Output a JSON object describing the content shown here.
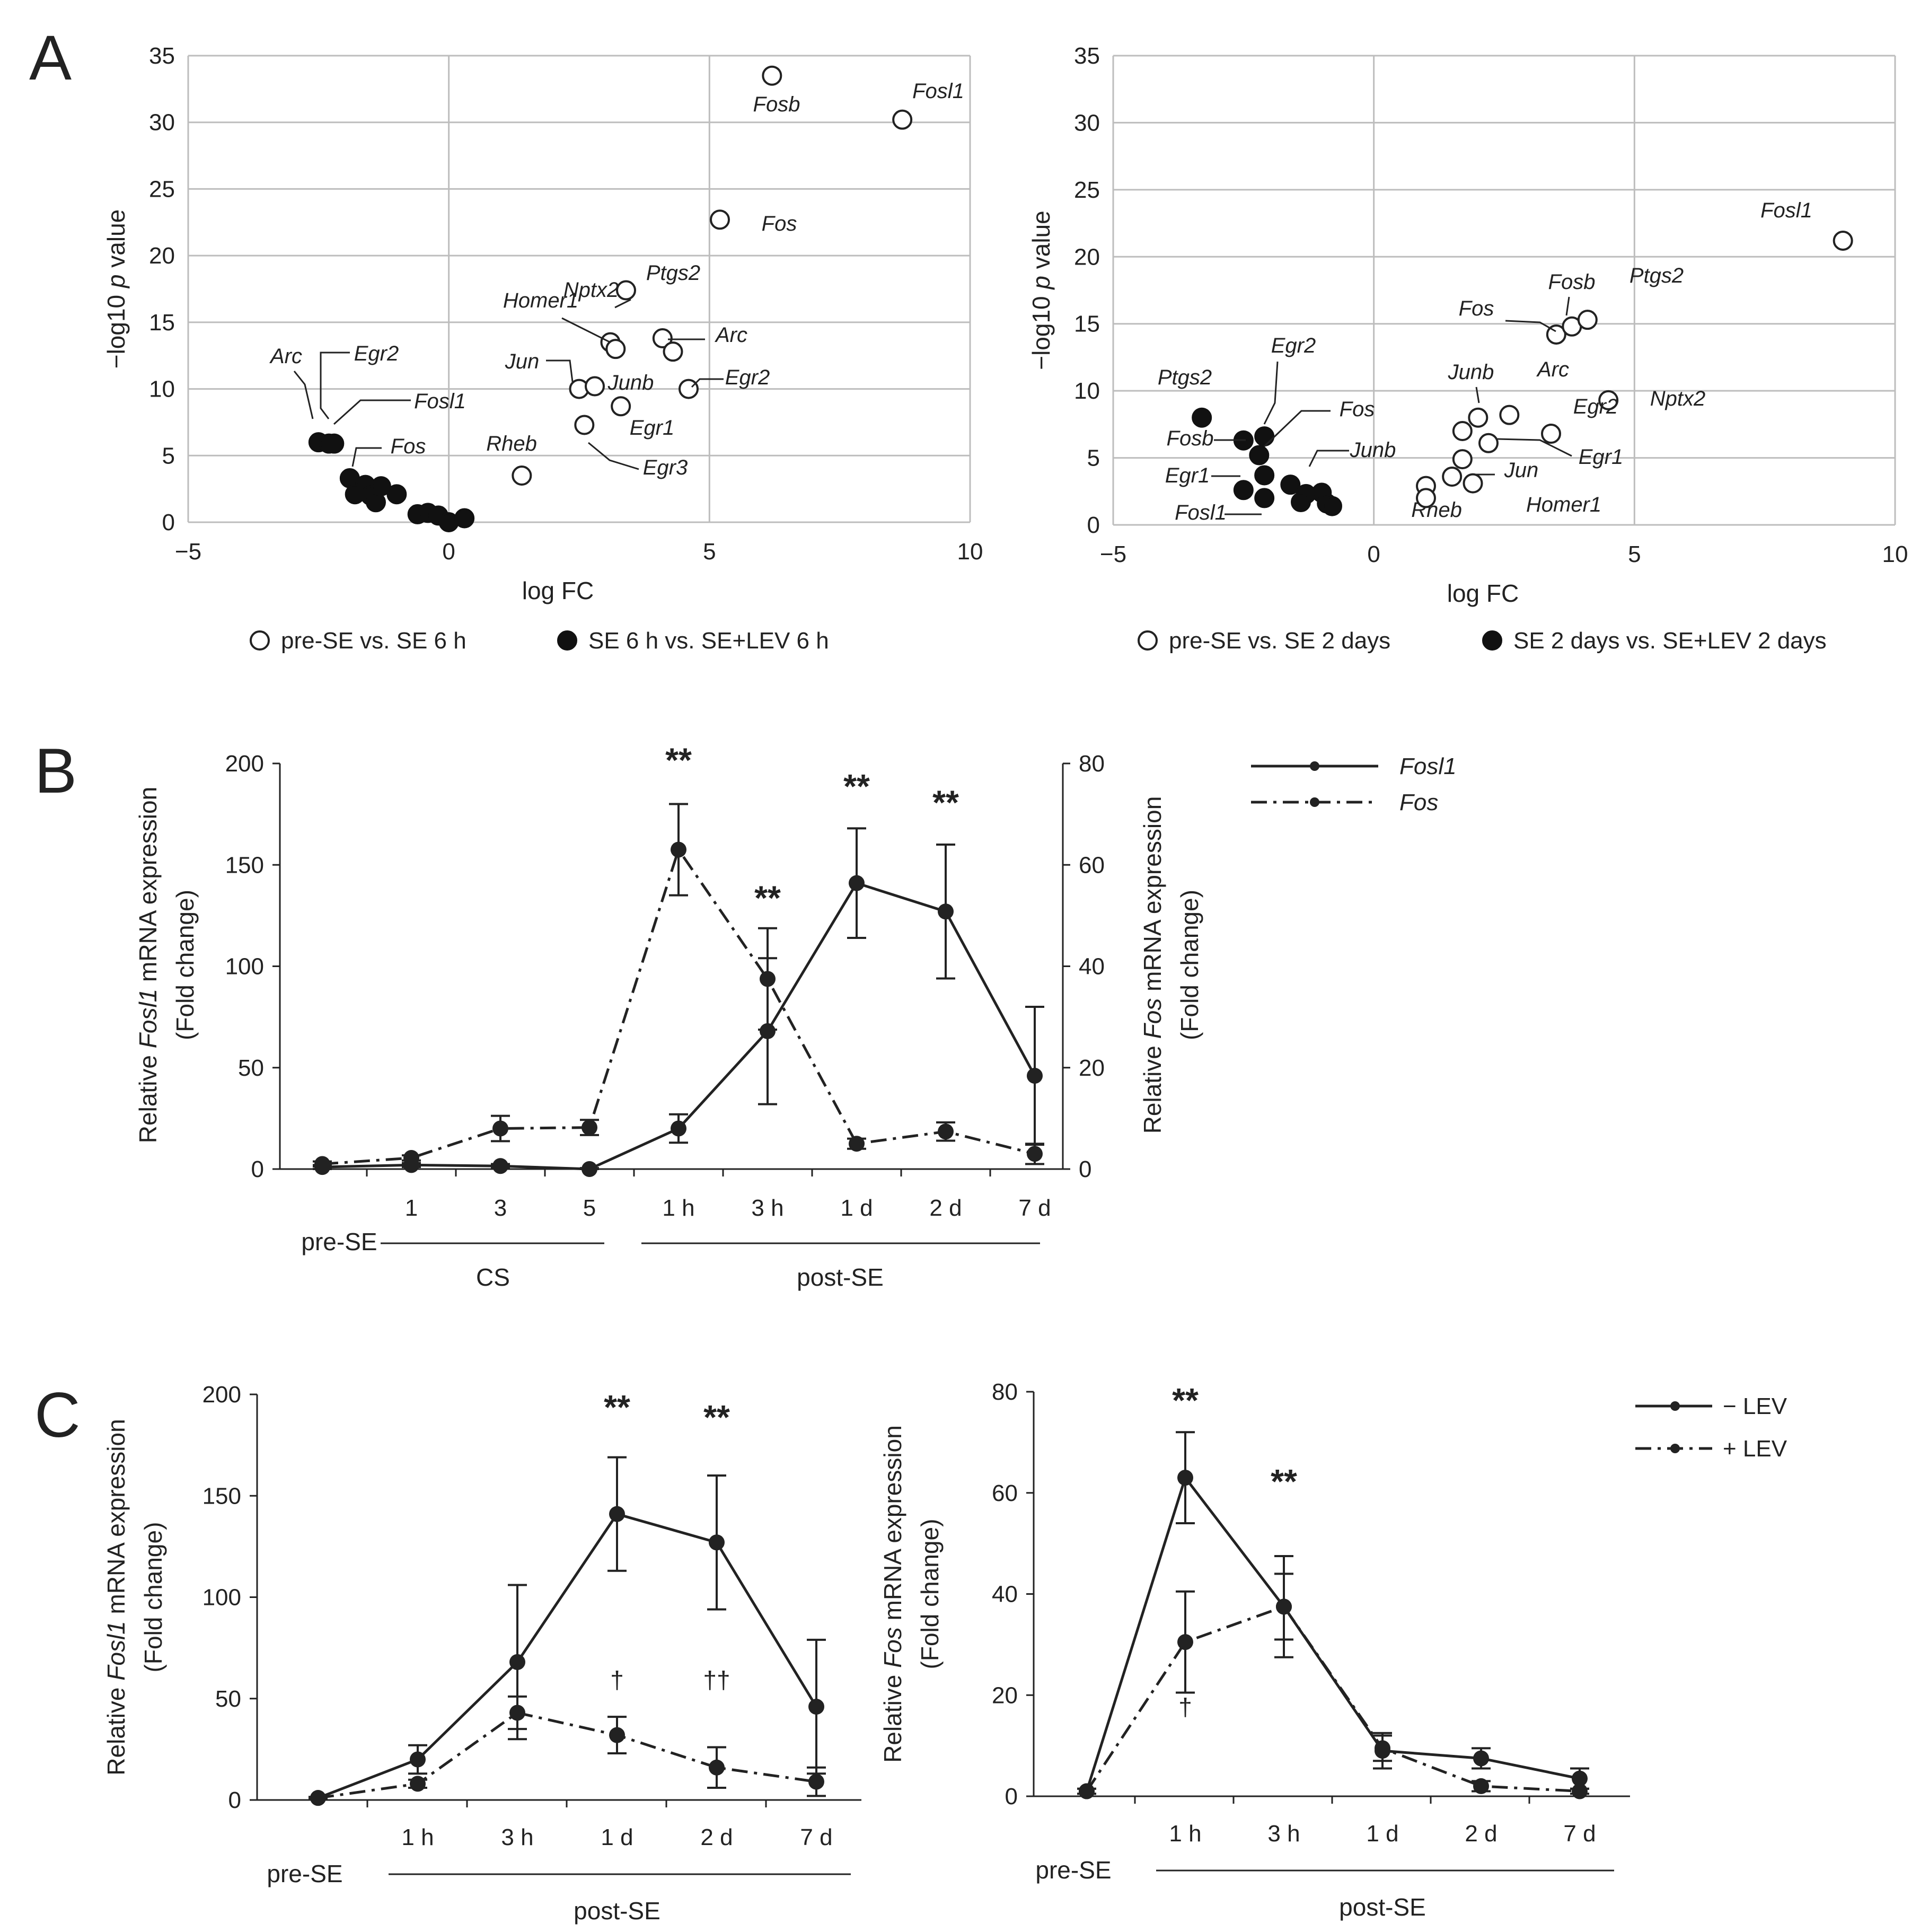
{
  "panels": {
    "A": "A",
    "B": "B",
    "C": "C"
  },
  "chart_data": [
    {
      "type": "scatter",
      "panel": "A",
      "xlabel": "log FC",
      "ylabel_parts": [
        "−log10 ",
        "p",
        " value"
      ],
      "xlim": [
        -5,
        10
      ],
      "ylim": [
        0,
        35
      ],
      "xticks": [
        -5,
        0,
        5,
        10
      ],
      "yticks": [
        0,
        5,
        10,
        15,
        20,
        25,
        30,
        35
      ],
      "grid": true,
      "legend_position": "bottom",
      "series": [
        {
          "name": "pre-SE vs. SE 6 h",
          "marker": "open",
          "color": "#222222",
          "points": [
            {
              "x": 6.2,
              "y": 33.5,
              "label": "Fosb"
            },
            {
              "x": 8.7,
              "y": 30.2,
              "label": "Fosl1"
            },
            {
              "x": 5.2,
              "y": 22.7,
              "label": "Fos"
            },
            {
              "x": 3.4,
              "y": 17.4,
              "label": "Nptx2"
            },
            {
              "x": 4.1,
              "y": 13.8,
              "label": "Ptgs2"
            },
            {
              "x": 3.1,
              "y": 13.5,
              "label": "Homer1"
            },
            {
              "x": 3.2,
              "y": 13.0
            },
            {
              "x": 4.3,
              "y": 12.8,
              "label": "Arc"
            },
            {
              "x": 2.5,
              "y": 10.0,
              "label": "Jun"
            },
            {
              "x": 2.8,
              "y": 10.2,
              "label": "Junb"
            },
            {
              "x": 4.6,
              "y": 10.0,
              "label": "Egr2"
            },
            {
              "x": 3.3,
              "y": 8.7,
              "label": "Egr1"
            },
            {
              "x": 2.6,
              "y": 7.3,
              "label": "Egr3"
            },
            {
              "x": 1.4,
              "y": 3.5,
              "label": "Rheb"
            }
          ]
        },
        {
          "name": "SE 6 h vs. SE+LEV 6 h",
          "marker": "filled",
          "color": "#111111",
          "points": [
            {
              "x": -2.5,
              "y": 6.0,
              "label": "Arc"
            },
            {
              "x": -2.3,
              "y": 5.9,
              "label": "Egr2"
            },
            {
              "x": -2.2,
              "y": 5.9,
              "label": "Fosl1"
            },
            {
              "x": -1.9,
              "y": 3.3,
              "label": "Fos"
            },
            {
              "x": -1.6,
              "y": 2.8
            },
            {
              "x": -1.8,
              "y": 2.1
            },
            {
              "x": -1.5,
              "y": 2.0
            },
            {
              "x": -1.4,
              "y": 1.5
            },
            {
              "x": -1.3,
              "y": 2.7
            },
            {
              "x": -1.0,
              "y": 2.1
            },
            {
              "x": -0.6,
              "y": 0.6
            },
            {
              "x": -0.4,
              "y": 0.7
            },
            {
              "x": -0.2,
              "y": 0.5
            },
            {
              "x": 0.0,
              "y": 0.0
            },
            {
              "x": 0.3,
              "y": 0.3
            }
          ]
        }
      ]
    },
    {
      "type": "scatter",
      "panel": "A",
      "xlabel": "log FC",
      "ylabel_parts": [
        "−log10 ",
        "p",
        " value"
      ],
      "xlim": [
        -5,
        10
      ],
      "ylim": [
        0,
        35
      ],
      "xticks": [
        -5,
        0,
        5,
        10
      ],
      "yticks": [
        0,
        5,
        10,
        15,
        20,
        25,
        30,
        35
      ],
      "grid": true,
      "legend_position": "bottom",
      "series": [
        {
          "name": "pre-SE vs. SE 2 days",
          "marker": "open",
          "color": "#222222",
          "points": [
            {
              "x": 9.0,
              "y": 21.2,
              "label": "Fosl1"
            },
            {
              "x": 3.5,
              "y": 14.2,
              "label": "Fos"
            },
            {
              "x": 3.8,
              "y": 14.8,
              "label": "Fosb"
            },
            {
              "x": 4.1,
              "y": 15.3,
              "label": "Ptgs2"
            },
            {
              "x": 4.5,
              "y": 9.3,
              "label": "Nptx2"
            },
            {
              "x": 2.0,
              "y": 8.0,
              "label": "Junb"
            },
            {
              "x": 2.6,
              "y": 8.2,
              "label": "Arc"
            },
            {
              "x": 3.4,
              "y": 6.8,
              "label": "Egr2"
            },
            {
              "x": 1.7,
              "y": 7.0
            },
            {
              "x": 2.2,
              "y": 6.1,
              "label": "Egr1"
            },
            {
              "x": 1.7,
              "y": 4.9
            },
            {
              "x": 1.5,
              "y": 3.6
            },
            {
              "x": 1.9,
              "y": 3.1,
              "label": "Jun"
            },
            {
              "x": 1.0,
              "y": 2.9,
              "label": "Rheb"
            },
            {
              "x": 1.0,
              "y": 2.0,
              "label": "Homer1"
            }
          ]
        },
        {
          "name": "SE 2 days vs. SE+LEV 2 days",
          "marker": "filled",
          "color": "#111111",
          "points": [
            {
              "x": -3.3,
              "y": 8.0,
              "label": "Ptgs2"
            },
            {
              "x": -2.5,
              "y": 6.3,
              "label": "Egr2"
            },
            {
              "x": -2.1,
              "y": 6.6,
              "label": "Fos"
            },
            {
              "x": -2.2,
              "y": 5.2,
              "label": "Fosb"
            },
            {
              "x": -2.1,
              "y": 3.7,
              "label": "Egr1"
            },
            {
              "x": -2.5,
              "y": 2.6
            },
            {
              "x": -2.1,
              "y": 2.0,
              "label": "Fosl1"
            },
            {
              "x": -1.6,
              "y": 3.0,
              "label": "Junb"
            },
            {
              "x": -1.3,
              "y": 2.3
            },
            {
              "x": -1.0,
              "y": 2.4
            },
            {
              "x": -1.4,
              "y": 1.7
            },
            {
              "x": -0.9,
              "y": 1.6
            },
            {
              "x": -0.8,
              "y": 1.4
            }
          ]
        }
      ]
    },
    {
      "type": "line",
      "panel": "B",
      "categories": [
        "",
        "1",
        "3",
        "5",
        "1 h",
        "3 h",
        "1 d",
        "2 d",
        "7 d"
      ],
      "yleft": {
        "ylim": [
          0,
          200
        ],
        "ticks": [
          0,
          50,
          100,
          150,
          200
        ],
        "label_parts": [
          "Relative ",
          "Fosl1",
          " mRNA expression"
        ],
        "label2": "(Fold change)"
      },
      "yright": {
        "ylim": [
          0,
          80
        ],
        "ticks": [
          0,
          20,
          40,
          60,
          80
        ],
        "label_parts": [
          "Relative ",
          "Fos",
          " mRNA expression"
        ],
        "label2": "(Fold change)"
      },
      "group_labels": {
        "pre": "pre-SE",
        "cs": "CS",
        "post": "post-SE"
      },
      "legend_position": "top-right",
      "series": [
        {
          "name": "Fosl1",
          "axis": "left",
          "style": "solid",
          "values": [
            1,
            2,
            1.5,
            0,
            20,
            68,
            141,
            127,
            46
          ],
          "errors": [
            1,
            1,
            1,
            0.5,
            7,
            36,
            27,
            33,
            34
          ]
        },
        {
          "name": "Fos",
          "axis": "right",
          "style": "dashdot",
          "values": [
            1,
            2.2,
            8,
            8.2,
            63,
            37.5,
            5,
            7.4,
            3
          ],
          "errors": [
            0.5,
            0.5,
            2.5,
            1.5,
            9,
            10,
            1,
            1.8,
            2
          ]
        }
      ],
      "annotations": [
        {
          "text": "**",
          "index": 4,
          "y": 196
        },
        {
          "text": "**",
          "index": 5,
          "y": 128
        },
        {
          "text": "**",
          "index": 6,
          "y": 183
        },
        {
          "text": "**",
          "index": 7,
          "y": 175
        }
      ]
    },
    {
      "type": "line",
      "panel": "C",
      "categories": [
        "",
        "1 h",
        "3 h",
        "1 d",
        "2 d",
        "7 d"
      ],
      "ylim": [
        0,
        200
      ],
      "yticks": [
        0,
        50,
        100,
        150,
        200
      ],
      "ylabel_parts": [
        "Relative ",
        "Fosl1",
        " mRNA expression"
      ],
      "ylabel2": "(Fold change)",
      "group_labels": {
        "pre": "pre-SE",
        "post": "post-SE"
      },
      "series": [
        {
          "name": "− LEV",
          "style": "solid",
          "values": [
            1,
            20,
            68,
            141,
            127,
            46
          ],
          "errors": [
            0.5,
            7,
            38,
            28,
            33,
            33
          ]
        },
        {
          "name": "+ LEV",
          "style": "dashdot",
          "values": [
            1,
            8,
            43,
            32,
            16,
            9
          ],
          "errors": [
            0.5,
            2,
            8,
            9,
            10,
            7
          ]
        }
      ],
      "annotations": [
        {
          "text": "**",
          "index": 3,
          "y": 188
        },
        {
          "text": "**",
          "index": 4,
          "y": 183
        },
        {
          "text": "†",
          "index": 3,
          "y": 55
        },
        {
          "text": "††",
          "index": 4,
          "y": 55
        }
      ]
    },
    {
      "type": "line",
      "panel": "C",
      "categories": [
        "",
        "1 h",
        "3 h",
        "1 d",
        "2 d",
        "7 d"
      ],
      "ylim": [
        0,
        80
      ],
      "yticks": [
        0,
        20,
        40,
        60,
        80
      ],
      "ylabel_parts": [
        "Relative ",
        "Fos",
        " mRNA expression"
      ],
      "ylabel2": "(Fold change)",
      "group_labels": {
        "pre": "pre-SE",
        "post": "post-SE"
      },
      "legend_position": "top-right",
      "series": [
        {
          "name": "− LEV",
          "style": "solid",
          "values": [
            1,
            63,
            37.5,
            9,
            7.5,
            3.5
          ],
          "errors": [
            0.5,
            9,
            10,
            3.5,
            2,
            2
          ]
        },
        {
          "name": "+ LEV",
          "style": "dashdot",
          "values": [
            1,
            30.5,
            37.5,
            9.5,
            2,
            1
          ],
          "errors": [
            0.5,
            10,
            6.5,
            2.5,
            1,
            0.5
          ]
        }
      ],
      "annotations": [
        {
          "text": "**",
          "index": 1,
          "y": 76
        },
        {
          "text": "**",
          "index": 2,
          "y": 60
        },
        {
          "text": "†",
          "index": 1,
          "y": 16
        }
      ]
    }
  ]
}
